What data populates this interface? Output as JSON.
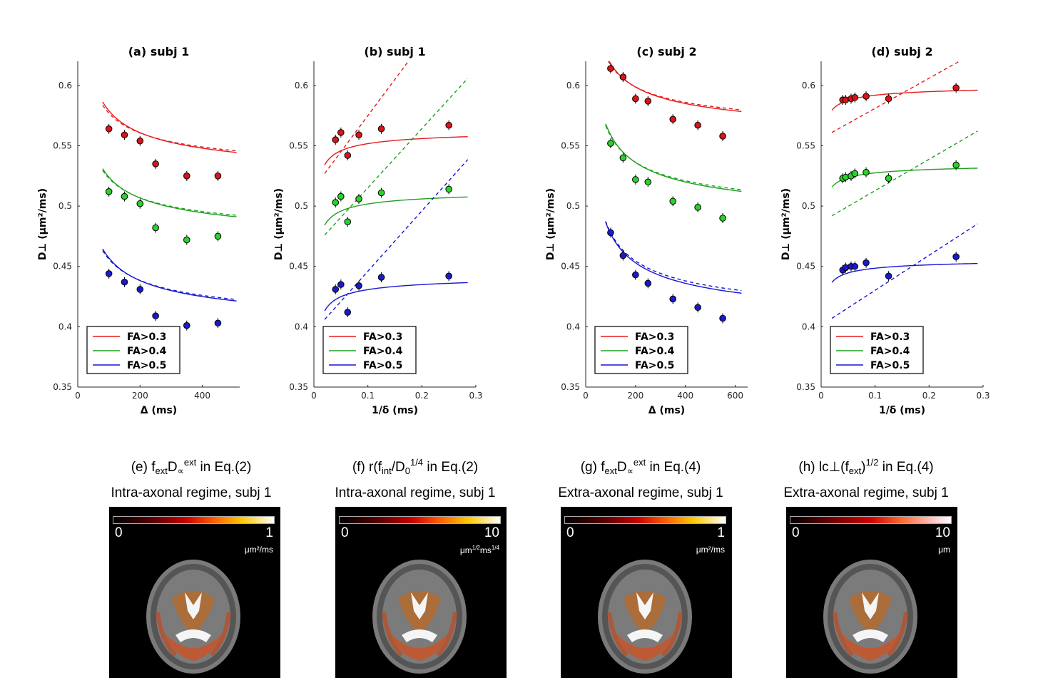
{
  "plots": [
    {
      "id": "a",
      "title": "(a) subj 1",
      "xlabel": "Δ (ms)",
      "ylabel": "D⊥ (μm²/ms)",
      "xlim": [
        0,
        520
      ],
      "xticks": [
        0,
        200,
        400
      ],
      "ylim": [
        0.35,
        0.62
      ],
      "yticks": [
        0.35,
        0.4,
        0.45,
        0.5,
        0.55,
        0.6
      ],
      "legend": [
        "FA>0.3",
        "FA>0.4",
        "FA>0.5"
      ],
      "series": [
        {
          "name": "FA>0.3",
          "color": "#e8191b",
          "fill": "#d81418",
          "x": [
            100,
            150,
            200,
            250,
            350,
            450
          ],
          "y": [
            0.564,
            0.559,
            0.554,
            0.535,
            0.525,
            0.525
          ],
          "solid": {
            "a": 0.517,
            "b": 0.62,
            "x0": 80,
            "x1": 510
          },
          "dashed": {
            "a": 0.521,
            "b": 0.56,
            "x0": 80,
            "x1": 510
          }
        },
        {
          "name": "FA>0.4",
          "color": "#1ea01e",
          "fill": "#28d228",
          "x": [
            100,
            150,
            200,
            250,
            350,
            450
          ],
          "y": [
            0.512,
            0.508,
            0.502,
            0.482,
            0.472,
            0.475
          ],
          "solid": {
            "a": 0.465,
            "b": 0.59,
            "x0": 80,
            "x1": 510
          },
          "dashed": {
            "a": 0.468,
            "b": 0.55,
            "x0": 80,
            "x1": 510
          }
        },
        {
          "name": "FA>0.5",
          "color": "#1515d6",
          "fill": "#1a1acc",
          "x": [
            100,
            150,
            200,
            250,
            350,
            450
          ],
          "y": [
            0.444,
            0.437,
            0.431,
            0.409,
            0.401,
            0.403
          ],
          "solid": {
            "a": 0.393,
            "b": 0.64,
            "x0": 80,
            "x1": 510
          },
          "dashed": {
            "a": 0.396,
            "b": 0.6,
            "x0": 80,
            "x1": 510
          }
        }
      ]
    },
    {
      "id": "b",
      "title": "(b) subj 1",
      "xlabel": "1/δ (ms)",
      "ylabel": "D⊥ (μm²/ms)",
      "xlim": [
        0,
        0.3
      ],
      "xticks": [
        0,
        0.1,
        0.2,
        0.3
      ],
      "ylim": [
        0.35,
        0.62
      ],
      "yticks": [
        0.35,
        0.4,
        0.45,
        0.5,
        0.55,
        0.6
      ],
      "legend": [
        "FA>0.3",
        "FA>0.4",
        "FA>0.5"
      ],
      "series": [
        {
          "name": "FA>0.3",
          "color": "#e8191b",
          "fill": "#d81418",
          "x": [
            0.04,
            0.05,
            0.0625,
            0.0833,
            0.125,
            0.25
          ],
          "y": [
            0.555,
            0.561,
            0.542,
            0.559,
            0.564,
            0.567
          ],
          "solid": {
            "ymax": 0.566,
            "c": 0.045,
            "x0": 0.02,
            "x1": 0.285
          },
          "dashed": {
            "y0": 0.527,
            "m": 0.6,
            "x0": 0.02,
            "x1": 0.285
          }
        },
        {
          "name": "FA>0.4",
          "color": "#1ea01e",
          "fill": "#28d228",
          "x": [
            0.04,
            0.05,
            0.0625,
            0.0833,
            0.125,
            0.25
          ],
          "y": [
            0.503,
            0.508,
            0.487,
            0.506,
            0.511,
            0.514
          ],
          "solid": {
            "ymax": 0.516,
            "c": 0.045,
            "x0": 0.02,
            "x1": 0.285
          },
          "dashed": {
            "y0": 0.476,
            "m": 0.49,
            "x0": 0.02,
            "x1": 0.285
          }
        },
        {
          "name": "FA>0.5",
          "color": "#1515d6",
          "fill": "#1a1acc",
          "x": [
            0.04,
            0.05,
            0.0625,
            0.0833,
            0.125,
            0.25
          ],
          "y": [
            0.431,
            0.435,
            0.412,
            0.434,
            0.441,
            0.442
          ],
          "solid": {
            "ymax": 0.445,
            "c": 0.045,
            "x0": 0.02,
            "x1": 0.285
          },
          "dashed": {
            "y0": 0.406,
            "m": 0.5,
            "x0": 0.02,
            "x1": 0.285
          }
        }
      ]
    },
    {
      "id": "c",
      "title": "(c) subj 2",
      "xlabel": "Δ (ms)",
      "ylabel": "D⊥ (μm²/ms)",
      "xlim": [
        0,
        650
      ],
      "xticks": [
        0,
        200,
        400,
        600
      ],
      "ylim": [
        0.35,
        0.62
      ],
      "yticks": [
        0.35,
        0.4,
        0.45,
        0.5,
        0.55,
        0.6
      ],
      "legend": [
        "FA>0.3",
        "FA>0.4",
        "FA>0.5"
      ],
      "series": [
        {
          "name": "FA>0.3",
          "color": "#e8191b",
          "fill": "#d81418",
          "x": [
            100,
            150,
            200,
            250,
            350,
            450,
            550
          ],
          "y": [
            0.614,
            0.607,
            0.589,
            0.587,
            0.572,
            0.567,
            0.558
          ],
          "solid": {
            "a": 0.552,
            "b": 0.66,
            "x0": 90,
            "x1": 625
          },
          "dashed": {
            "a": 0.555,
            "b": 0.62,
            "x0": 90,
            "x1": 625
          }
        },
        {
          "name": "FA>0.4",
          "color": "#1ea01e",
          "fill": "#28d228",
          "x": [
            100,
            150,
            200,
            250,
            350,
            450,
            550
          ],
          "y": [
            0.552,
            0.54,
            0.522,
            0.52,
            0.504,
            0.499,
            0.49
          ],
          "solid": {
            "a": 0.481,
            "b": 0.78,
            "x0": 80,
            "x1": 625
          },
          "dashed": {
            "a": 0.484,
            "b": 0.74,
            "x0": 80,
            "x1": 625
          }
        },
        {
          "name": "FA>0.5",
          "color": "#1515d6",
          "fill": "#1a1acc",
          "x": [
            100,
            150,
            200,
            250,
            350,
            450,
            550
          ],
          "y": [
            0.478,
            0.459,
            0.443,
            0.436,
            0.423,
            0.416,
            0.407
          ],
          "solid": {
            "a": 0.395,
            "b": 0.82,
            "x0": 80,
            "x1": 625
          },
          "dashed": {
            "a": 0.398,
            "b": 0.8,
            "x0": 80,
            "x1": 625
          }
        }
      ]
    },
    {
      "id": "d",
      "title": "(d) subj 2",
      "xlabel": "1/δ (ms)",
      "ylabel": "D⊥ (μm²/ms)",
      "xlim": [
        0,
        0.3
      ],
      "xticks": [
        0,
        0.1,
        0.2,
        0.3
      ],
      "ylim": [
        0.35,
        0.62
      ],
      "yticks": [
        0.35,
        0.4,
        0.45,
        0.5,
        0.55,
        0.6
      ],
      "legend": [
        "FA>0.3",
        "FA>0.4",
        "FA>0.5"
      ],
      "series": [
        {
          "name": "FA>0.3",
          "color": "#e8191b",
          "fill": "#d81418",
          "x": [
            0.04,
            0.0455,
            0.0555,
            0.0625,
            0.0833,
            0.125,
            0.25
          ],
          "y": [
            0.588,
            0.588,
            0.589,
            0.59,
            0.591,
            0.589,
            0.598
          ],
          "solid": {
            "ymax": 0.602,
            "c": 0.032,
            "x0": 0.02,
            "x1": 0.29
          },
          "dashed": {
            "y0": 0.561,
            "m": 0.25,
            "x0": 0.02,
            "x1": 0.29
          }
        },
        {
          "name": "FA>0.4",
          "color": "#1ea01e",
          "fill": "#28d228",
          "x": [
            0.04,
            0.0455,
            0.0555,
            0.0625,
            0.0833,
            0.125,
            0.25
          ],
          "y": [
            0.523,
            0.524,
            0.525,
            0.527,
            0.528,
            0.523,
            0.534
          ],
          "solid": {
            "ymax": 0.537,
            "c": 0.03,
            "x0": 0.02,
            "x1": 0.29
          },
          "dashed": {
            "y0": 0.492,
            "m": 0.26,
            "x0": 0.02,
            "x1": 0.29
          }
        },
        {
          "name": "FA>0.5",
          "color": "#1515d6",
          "fill": "#1a1acc",
          "x": [
            0.04,
            0.0455,
            0.0555,
            0.0625,
            0.0833,
            0.125,
            0.25
          ],
          "y": [
            0.447,
            0.449,
            0.45,
            0.45,
            0.453,
            0.442,
            0.458
          ],
          "solid": {
            "ymax": 0.458,
            "c": 0.03,
            "x0": 0.02,
            "x1": 0.29
          },
          "dashed": {
            "y0": 0.407,
            "m": 0.29,
            "x0": 0.02,
            "x1": 0.29
          }
        }
      ]
    }
  ],
  "maps": [
    {
      "panel": "(e) f",
      "sub1": "ext",
      "mid": "D",
      "sub2": "∝",
      "sup": "ext",
      "tail": " in Eq.(2)",
      "line2": "Intra-axonal regime, subj 1",
      "cmin": "0",
      "cmax": "1",
      "unit": "μm²/ms",
      "colormap": "hot"
    },
    {
      "panel": "(f) r(f",
      "sub1": "int",
      "mid": "/D",
      "sub2": "0",
      "sup": "1/4",
      "tail": " in Eq.(2)",
      "line2": "Intra-axonal regime, subj 1",
      "cmin": "0",
      "cmax": "10",
      "unit": "μm1/2ms1/4",
      "colormap": "hot"
    },
    {
      "panel": "(g) f",
      "sub1": "ext",
      "mid": "D",
      "sub2": "∝",
      "sup": "ext",
      "tail": " in Eq.(4)",
      "line2": "Extra-axonal regime, subj 1",
      "cmin": "0",
      "cmax": "1",
      "unit": "μm²/ms",
      "colormap": "hot"
    },
    {
      "panel": "(h) lc⊥(f",
      "sub1": "ext",
      "mid": ")",
      "sub2": "",
      "sup": "1/2",
      "tail": " in Eq.(4)",
      "line2": "Extra-axonal regime, subj 1",
      "cmin": "0",
      "cmax": "10",
      "unit": "μm",
      "colormap": "hotwhite"
    }
  ],
  "chart_data": [
    {
      "type": "scatter",
      "title": "(a) subj 1",
      "xlabel": "Δ (ms)",
      "ylabel": "D⊥ (μm²/ms)",
      "xlim": [
        0,
        520
      ],
      "ylim": [
        0.35,
        0.62
      ],
      "x": [
        100,
        150,
        200,
        250,
        350,
        450
      ],
      "series": [
        {
          "name": "FA>0.3",
          "values": [
            0.564,
            0.559,
            0.554,
            0.535,
            0.525,
            0.525
          ]
        },
        {
          "name": "FA>0.4",
          "values": [
            0.512,
            0.508,
            0.502,
            0.482,
            0.472,
            0.475
          ]
        },
        {
          "name": "FA>0.5",
          "values": [
            0.444,
            0.437,
            0.431,
            0.409,
            0.401,
            0.403
          ]
        }
      ]
    },
    {
      "type": "scatter",
      "title": "(b) subj 1",
      "xlabel": "1/δ (ms)",
      "ylabel": "D⊥ (μm²/ms)",
      "xlim": [
        0,
        0.3
      ],
      "ylim": [
        0.35,
        0.62
      ],
      "x": [
        0.04,
        0.05,
        0.0625,
        0.0833,
        0.125,
        0.25
      ],
      "series": [
        {
          "name": "FA>0.3",
          "values": [
            0.555,
            0.561,
            0.542,
            0.559,
            0.564,
            0.567
          ]
        },
        {
          "name": "FA>0.4",
          "values": [
            0.503,
            0.508,
            0.487,
            0.506,
            0.511,
            0.514
          ]
        },
        {
          "name": "FA>0.5",
          "values": [
            0.431,
            0.435,
            0.412,
            0.434,
            0.441,
            0.442
          ]
        }
      ]
    },
    {
      "type": "scatter",
      "title": "(c) subj 2",
      "xlabel": "Δ (ms)",
      "ylabel": "D⊥ (μm²/ms)",
      "xlim": [
        0,
        650
      ],
      "ylim": [
        0.35,
        0.62
      ],
      "x": [
        100,
        150,
        200,
        250,
        350,
        450,
        550
      ],
      "series": [
        {
          "name": "FA>0.3",
          "values": [
            0.614,
            0.607,
            0.589,
            0.587,
            0.572,
            0.567,
            0.558
          ]
        },
        {
          "name": "FA>0.4",
          "values": [
            0.552,
            0.54,
            0.522,
            0.52,
            0.504,
            0.499,
            0.49
          ]
        },
        {
          "name": "FA>0.5",
          "values": [
            0.478,
            0.459,
            0.443,
            0.436,
            0.423,
            0.416,
            0.407
          ]
        }
      ]
    },
    {
      "type": "scatter",
      "title": "(d) subj 2",
      "xlabel": "1/δ (ms)",
      "ylabel": "D⊥ (μm²/ms)",
      "xlim": [
        0,
        0.3
      ],
      "ylim": [
        0.35,
        0.62
      ],
      "x": [
        0.04,
        0.0455,
        0.0555,
        0.0625,
        0.0833,
        0.125,
        0.25
      ],
      "series": [
        {
          "name": "FA>0.3",
          "values": [
            0.588,
            0.588,
            0.589,
            0.59,
            0.591,
            0.589,
            0.598
          ]
        },
        {
          "name": "FA>0.4",
          "values": [
            0.523,
            0.524,
            0.525,
            0.527,
            0.528,
            0.523,
            0.534
          ]
        },
        {
          "name": "FA>0.5",
          "values": [
            0.447,
            0.449,
            0.45,
            0.45,
            0.453,
            0.442,
            0.458
          ]
        }
      ]
    }
  ]
}
